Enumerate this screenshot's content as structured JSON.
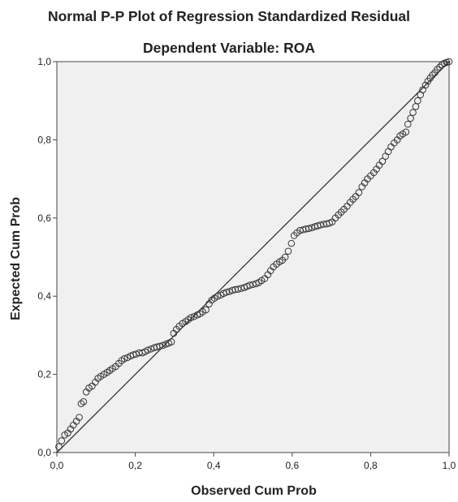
{
  "chart_data": {
    "type": "scatter",
    "title": "Normal P-P Plot of Regression Standardized Residual",
    "subtitle": "Dependent Variable: ROA",
    "xlabel": "Observed Cum Prob",
    "ylabel": "Expected Cum Prob",
    "xlim": [
      0,
      1
    ],
    "ylim": [
      0,
      1
    ],
    "x_ticks": [
      "0,0",
      "0,2",
      "0,4",
      "0,6",
      "0,8",
      "1,0"
    ],
    "y_ticks": [
      "0,0",
      "0,2",
      "0,4",
      "0,6",
      "0,8",
      "1,0"
    ],
    "grid": false,
    "legend": "none",
    "reference_line": {
      "from": [
        0,
        0
      ],
      "to": [
        1,
        1
      ]
    },
    "series": [
      {
        "points": [
          [
            0.005,
            0.015
          ],
          [
            0.012,
            0.03
          ],
          [
            0.02,
            0.045
          ],
          [
            0.028,
            0.05
          ],
          [
            0.035,
            0.06
          ],
          [
            0.042,
            0.07
          ],
          [
            0.05,
            0.08
          ],
          [
            0.057,
            0.09
          ],
          [
            0.062,
            0.125
          ],
          [
            0.068,
            0.13
          ],
          [
            0.075,
            0.155
          ],
          [
            0.082,
            0.165
          ],
          [
            0.09,
            0.17
          ],
          [
            0.098,
            0.18
          ],
          [
            0.105,
            0.19
          ],
          [
            0.112,
            0.195
          ],
          [
            0.12,
            0.2
          ],
          [
            0.128,
            0.205
          ],
          [
            0.135,
            0.21
          ],
          [
            0.142,
            0.215
          ],
          [
            0.15,
            0.22
          ],
          [
            0.158,
            0.228
          ],
          [
            0.165,
            0.235
          ],
          [
            0.172,
            0.24
          ],
          [
            0.18,
            0.243
          ],
          [
            0.188,
            0.247
          ],
          [
            0.195,
            0.25
          ],
          [
            0.202,
            0.252
          ],
          [
            0.21,
            0.255
          ],
          [
            0.218,
            0.255
          ],
          [
            0.225,
            0.258
          ],
          [
            0.232,
            0.262
          ],
          [
            0.24,
            0.265
          ],
          [
            0.248,
            0.268
          ],
          [
            0.255,
            0.27
          ],
          [
            0.262,
            0.272
          ],
          [
            0.27,
            0.274
          ],
          [
            0.278,
            0.277
          ],
          [
            0.285,
            0.28
          ],
          [
            0.292,
            0.283
          ],
          [
            0.298,
            0.305
          ],
          [
            0.305,
            0.315
          ],
          [
            0.312,
            0.323
          ],
          [
            0.32,
            0.33
          ],
          [
            0.328,
            0.335
          ],
          [
            0.335,
            0.34
          ],
          [
            0.342,
            0.345
          ],
          [
            0.35,
            0.348
          ],
          [
            0.358,
            0.352
          ],
          [
            0.365,
            0.355
          ],
          [
            0.372,
            0.36
          ],
          [
            0.38,
            0.365
          ],
          [
            0.388,
            0.38
          ],
          [
            0.395,
            0.39
          ],
          [
            0.402,
            0.395
          ],
          [
            0.41,
            0.4
          ],
          [
            0.418,
            0.403
          ],
          [
            0.425,
            0.407
          ],
          [
            0.432,
            0.41
          ],
          [
            0.44,
            0.412
          ],
          [
            0.448,
            0.415
          ],
          [
            0.455,
            0.417
          ],
          [
            0.462,
            0.418
          ],
          [
            0.47,
            0.42
          ],
          [
            0.478,
            0.422
          ],
          [
            0.485,
            0.425
          ],
          [
            0.492,
            0.428
          ],
          [
            0.5,
            0.43
          ],
          [
            0.508,
            0.432
          ],
          [
            0.515,
            0.435
          ],
          [
            0.522,
            0.44
          ],
          [
            0.53,
            0.445
          ],
          [
            0.538,
            0.455
          ],
          [
            0.545,
            0.465
          ],
          [
            0.552,
            0.475
          ],
          [
            0.56,
            0.482
          ],
          [
            0.568,
            0.488
          ],
          [
            0.575,
            0.492
          ],
          [
            0.582,
            0.5
          ],
          [
            0.59,
            0.515
          ],
          [
            0.598,
            0.535
          ],
          [
            0.605,
            0.555
          ],
          [
            0.612,
            0.562
          ],
          [
            0.62,
            0.568
          ],
          [
            0.628,
            0.57
          ],
          [
            0.635,
            0.572
          ],
          [
            0.642,
            0.573
          ],
          [
            0.65,
            0.575
          ],
          [
            0.658,
            0.578
          ],
          [
            0.665,
            0.58
          ],
          [
            0.672,
            0.582
          ],
          [
            0.68,
            0.584
          ],
          [
            0.688,
            0.585
          ],
          [
            0.695,
            0.587
          ],
          [
            0.702,
            0.59
          ],
          [
            0.71,
            0.6
          ],
          [
            0.718,
            0.608
          ],
          [
            0.725,
            0.615
          ],
          [
            0.732,
            0.622
          ],
          [
            0.74,
            0.63
          ],
          [
            0.748,
            0.64
          ],
          [
            0.755,
            0.648
          ],
          [
            0.762,
            0.655
          ],
          [
            0.77,
            0.665
          ],
          [
            0.778,
            0.68
          ],
          [
            0.785,
            0.69
          ],
          [
            0.792,
            0.7
          ],
          [
            0.8,
            0.708
          ],
          [
            0.808,
            0.716
          ],
          [
            0.815,
            0.725
          ],
          [
            0.822,
            0.735
          ],
          [
            0.83,
            0.745
          ],
          [
            0.838,
            0.758
          ],
          [
            0.845,
            0.77
          ],
          [
            0.852,
            0.782
          ],
          [
            0.86,
            0.792
          ],
          [
            0.868,
            0.8
          ],
          [
            0.875,
            0.81
          ],
          [
            0.882,
            0.815
          ],
          [
            0.89,
            0.82
          ],
          [
            0.895,
            0.84
          ],
          [
            0.902,
            0.855
          ],
          [
            0.908,
            0.87
          ],
          [
            0.915,
            0.885
          ],
          [
            0.92,
            0.9
          ],
          [
            0.927,
            0.915
          ],
          [
            0.933,
            0.928
          ],
          [
            0.94,
            0.94
          ],
          [
            0.946,
            0.95
          ],
          [
            0.952,
            0.958
          ],
          [
            0.958,
            0.966
          ],
          [
            0.964,
            0.972
          ],
          [
            0.97,
            0.98
          ],
          [
            0.976,
            0.986
          ],
          [
            0.982,
            0.992
          ],
          [
            0.988,
            0.996
          ],
          [
            0.994,
            0.998
          ],
          [
            1.0,
            1.0
          ]
        ]
      }
    ]
  }
}
